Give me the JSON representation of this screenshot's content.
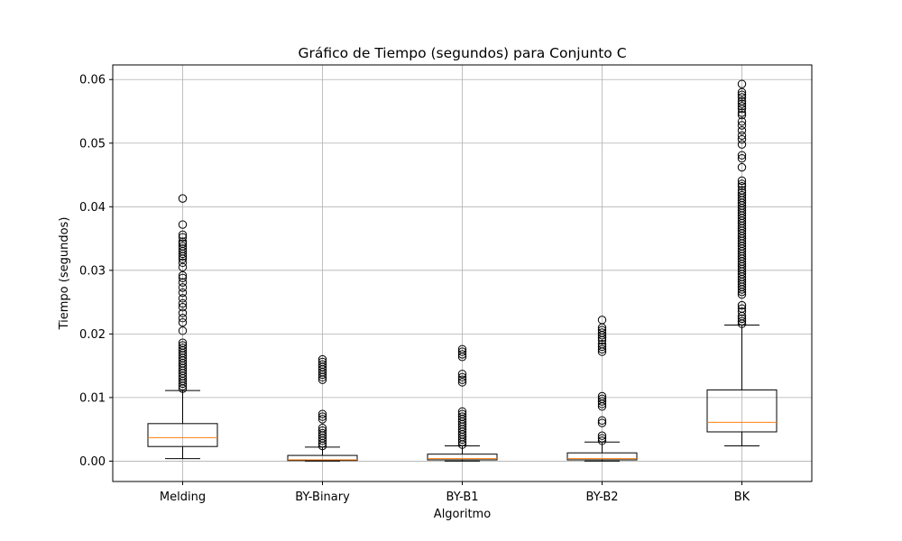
{
  "chart_data": {
    "type": "boxplot",
    "title": "Gráfico de Tiempo (segundos) para Conjunto C",
    "xlabel": "Algoritmo",
    "ylabel": "Tiempo (segundos)",
    "ylim": [
      -0.0032,
      0.0623
    ],
    "yticks": [
      0.0,
      0.01,
      0.02,
      0.03,
      0.04,
      0.05,
      0.06
    ],
    "ytick_labels": [
      "0.00",
      "0.01",
      "0.02",
      "0.03",
      "0.04",
      "0.05",
      "0.06"
    ],
    "grid": true,
    "categories": [
      "Melding",
      "BY-Binary",
      "BY-B1",
      "BY-B2",
      "BK"
    ],
    "boxes": [
      {
        "name": "Melding",
        "whisker_low": 0.0004,
        "q1": 0.0023,
        "median": 0.0037,
        "q3": 0.0059,
        "whisker_high": 0.0111,
        "outliers": [
          0.0114,
          0.0118,
          0.0122,
          0.0126,
          0.013,
          0.0134,
          0.0138,
          0.0142,
          0.0146,
          0.015,
          0.0154,
          0.0158,
          0.0162,
          0.0166,
          0.017,
          0.0174,
          0.0178,
          0.0182,
          0.0186,
          0.0205,
          0.0218,
          0.0225,
          0.0233,
          0.0242,
          0.0248,
          0.0256,
          0.0265,
          0.0273,
          0.0281,
          0.0288,
          0.0292,
          0.0305,
          0.0312,
          0.0318,
          0.0322,
          0.0326,
          0.033,
          0.0334,
          0.0338,
          0.0342,
          0.0345,
          0.0352,
          0.0356,
          0.0372,
          0.0413
        ]
      },
      {
        "name": "BY-Binary",
        "whisker_low": 0.0,
        "q1": 0.0001,
        "median": 0.0002,
        "q3": 0.0009,
        "whisker_high": 0.0022,
        "outliers": [
          0.0024,
          0.0028,
          0.0032,
          0.0036,
          0.004,
          0.0044,
          0.0048,
          0.0052,
          0.0066,
          0.007,
          0.0074,
          0.0128,
          0.0132,
          0.0136,
          0.014,
          0.0144,
          0.0148,
          0.0152,
          0.0156,
          0.016
        ]
      },
      {
        "name": "BY-B1",
        "whisker_low": 0.0,
        "q1": 0.0002,
        "median": 0.0004,
        "q3": 0.0011,
        "whisker_high": 0.0024,
        "outliers": [
          0.0026,
          0.003,
          0.0034,
          0.0038,
          0.0042,
          0.0046,
          0.005,
          0.0054,
          0.0058,
          0.0062,
          0.0066,
          0.007,
          0.0074,
          0.0078,
          0.0124,
          0.0128,
          0.0132,
          0.0137,
          0.0164,
          0.0168,
          0.0172,
          0.0176
        ]
      },
      {
        "name": "BY-B2",
        "whisker_low": 0.0,
        "q1": 0.0002,
        "median": 0.0004,
        "q3": 0.0013,
        "whisker_high": 0.003,
        "outliers": [
          0.0032,
          0.0036,
          0.004,
          0.006,
          0.0064,
          0.0086,
          0.009,
          0.0094,
          0.0098,
          0.0102,
          0.0172,
          0.0176,
          0.018,
          0.0184,
          0.019,
          0.0194,
          0.0198,
          0.0202,
          0.0206,
          0.021,
          0.0222
        ]
      },
      {
        "name": "BK",
        "whisker_low": 0.0024,
        "q1": 0.0046,
        "median": 0.0061,
        "q3": 0.0112,
        "whisker_high": 0.0214,
        "outliers": [
          0.0216,
          0.022,
          0.0224,
          0.0228,
          0.0235,
          0.024,
          0.0245,
          0.0262,
          0.0266,
          0.027,
          0.0274,
          0.0278,
          0.0282,
          0.0286,
          0.029,
          0.0294,
          0.0298,
          0.0302,
          0.0306,
          0.031,
          0.0314,
          0.0318,
          0.0322,
          0.0326,
          0.033,
          0.0334,
          0.0338,
          0.0342,
          0.0346,
          0.035,
          0.0354,
          0.0358,
          0.0362,
          0.0366,
          0.037,
          0.0374,
          0.0378,
          0.0382,
          0.0386,
          0.039,
          0.0394,
          0.0398,
          0.0402,
          0.0406,
          0.041,
          0.0414,
          0.0418,
          0.0422,
          0.0426,
          0.0432,
          0.0436,
          0.0441,
          0.0462,
          0.0476,
          0.0481,
          0.0498,
          0.0506,
          0.0512,
          0.052,
          0.0528,
          0.0534,
          0.0544,
          0.0548,
          0.0554,
          0.0558,
          0.0562,
          0.0566,
          0.0572,
          0.0576,
          0.058,
          0.0593
        ]
      }
    ],
    "colors": {
      "box": "#000000",
      "median": "#ff7f0e",
      "grid": "#b0b0b0"
    }
  }
}
